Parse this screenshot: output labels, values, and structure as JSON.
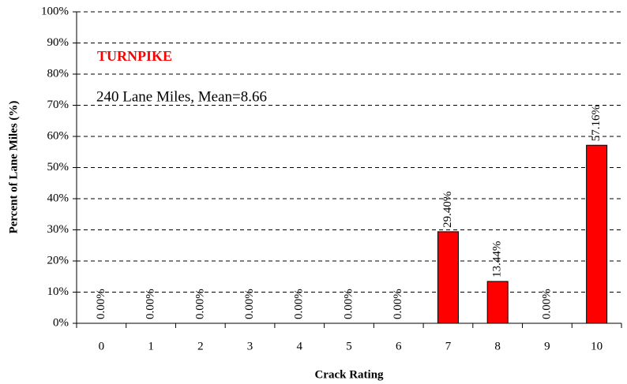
{
  "chart_data": {
    "type": "bar",
    "annotations": [
      "TURNPIKE",
      "240 Lane Miles, Mean=8.66"
    ],
    "xlabel": "Crack Rating",
    "ylabel": "Percent of Lane Miles (%)",
    "categories": [
      "0",
      "1",
      "2",
      "3",
      "4",
      "5",
      "6",
      "7",
      "8",
      "9",
      "10"
    ],
    "values": [
      0,
      0,
      0,
      0,
      0,
      0,
      0,
      29.4,
      13.44,
      0,
      57.16
    ],
    "value_labels": [
      "0.00%",
      "0.00%",
      "0.00%",
      "0.00%",
      "0.00%",
      "0.00%",
      "0.00%",
      "29.40%",
      "13.44%",
      "0.00%",
      "57.16%"
    ],
    "color": "#ff0000",
    "annotation_color": "#ff0000",
    "ylim": [
      0,
      100
    ],
    "yticks": [
      {
        "value": 0,
        "label": "0%"
      },
      {
        "value": 10,
        "label": "10%"
      },
      {
        "value": 20,
        "label": "20%"
      },
      {
        "value": 30,
        "label": "30%"
      },
      {
        "value": 40,
        "label": "40%"
      },
      {
        "value": 50,
        "label": "50%"
      },
      {
        "value": 60,
        "label": "60%"
      },
      {
        "value": 70,
        "label": "70%"
      },
      {
        "value": 80,
        "label": "80%"
      },
      {
        "value": 90,
        "label": "90%"
      },
      {
        "value": 100,
        "label": "100%"
      }
    ],
    "grid": true
  }
}
